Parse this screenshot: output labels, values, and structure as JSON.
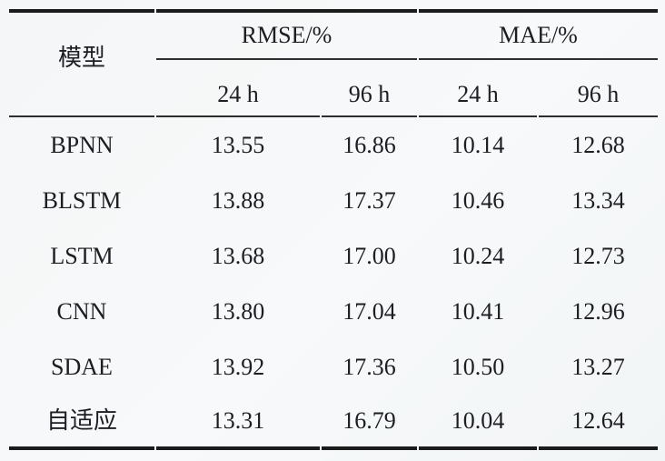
{
  "page": {
    "background_color": "#f5f7f8",
    "text_color": "#1d1d23",
    "rule_color_thick": "#1b1b1b",
    "rule_color_thin": "#2e2e2e"
  },
  "table": {
    "model_header": "模型",
    "groups": [
      {
        "label": "RMSE/%",
        "sub": [
          "24 h",
          "96 h"
        ]
      },
      {
        "label": "MAE/%",
        "sub": [
          "24 h",
          "96 h"
        ]
      }
    ],
    "rows": [
      {
        "model": "BPNN",
        "rmse_24h": "13.55",
        "rmse_96h": "16.86",
        "mae_24h": "10.14",
        "mae_96h": "12.68"
      },
      {
        "model": "BLSTM",
        "rmse_24h": "13.88",
        "rmse_96h": "17.37",
        "mae_24h": "10.46",
        "mae_96h": "13.34"
      },
      {
        "model": "LSTM",
        "rmse_24h": "13.68",
        "rmse_96h": "17.00",
        "mae_24h": "10.24",
        "mae_96h": "12.73"
      },
      {
        "model": "CNN",
        "rmse_24h": "13.80",
        "rmse_96h": "17.04",
        "mae_24h": "10.41",
        "mae_96h": "12.96"
      },
      {
        "model": "SDAE",
        "rmse_24h": "13.92",
        "rmse_96h": "17.36",
        "mae_24h": "10.50",
        "mae_96h": "13.27"
      },
      {
        "model": "自适应",
        "rmse_24h": "13.31",
        "rmse_96h": "16.79",
        "mae_24h": "10.04",
        "mae_96h": "12.64"
      }
    ]
  },
  "chart_data": {
    "type": "table",
    "title": "",
    "columns": [
      "模型",
      "RMSE/% 24 h",
      "RMSE/% 96 h",
      "MAE/% 24 h",
      "MAE/% 96 h"
    ],
    "rows_values": [
      [
        "BPNN",
        13.55,
        16.86,
        10.14,
        12.68
      ],
      [
        "BLSTM",
        13.88,
        17.37,
        10.46,
        13.34
      ],
      [
        "LSTM",
        13.68,
        17.0,
        10.24,
        12.73
      ],
      [
        "CNN",
        13.8,
        17.04,
        10.41,
        12.96
      ],
      [
        "SDAE",
        13.92,
        17.36,
        10.5,
        13.27
      ],
      [
        "自适应",
        13.31,
        16.79,
        10.04,
        12.64
      ]
    ]
  }
}
